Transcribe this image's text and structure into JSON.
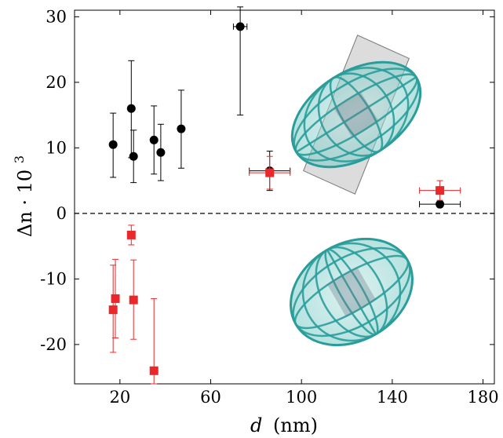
{
  "chart_data": {
    "type": "scatter",
    "xlabel_var": "d",
    "xlabel_unit": "(nm)",
    "ylabel_main": "Δn · 10",
    "ylabel_sup": "3",
    "xlim": [
      0,
      185
    ],
    "ylim": [
      -26,
      31
    ],
    "xticks": [
      20,
      60,
      100,
      140,
      180
    ],
    "yticks": [
      -20,
      -10,
      0,
      10,
      20,
      30
    ],
    "grid": false,
    "reference_line_y": 0,
    "series": [
      {
        "marker": "circle",
        "color": "#000000",
        "points": [
          {
            "x": 17,
            "y": 10.5,
            "yerr_low": 5.0,
            "yerr_high": 4.8
          },
          {
            "x": 25,
            "y": 16.0,
            "yerr_low": 7.5,
            "yerr_high": 7.3
          },
          {
            "x": 26,
            "y": 8.7,
            "yerr_low": 4.0,
            "yerr_high": 4.0
          },
          {
            "x": 35,
            "y": 11.2,
            "yerr_low": 5.2,
            "yerr_high": 5.2
          },
          {
            "x": 38,
            "y": 9.3,
            "yerr_low": 4.3,
            "yerr_high": 4.3
          },
          {
            "x": 47,
            "y": 12.9,
            "yerr_low": 6.0,
            "yerr_high": 5.9
          },
          {
            "x": 73,
            "y": 28.5,
            "yerr_low": 13.5,
            "yerr_high": 3.0,
            "xerr": 3
          },
          {
            "x": 86,
            "y": 6.5,
            "yerr_low": 3.0,
            "yerr_high": 3.0,
            "xerr": 9
          },
          {
            "x": 161,
            "y": 1.4,
            "yerr_low": 0,
            "yerr_high": 0,
            "xerr": 9
          }
        ]
      },
      {
        "marker": "square",
        "color": "#e8282a",
        "points": [
          {
            "x": 17,
            "y": -14.7,
            "yerr_low": 6.5,
            "yerr_high": 6.8
          },
          {
            "x": 18,
            "y": -13.0,
            "yerr_low": 6.0,
            "yerr_high": 6.0
          },
          {
            "x": 25,
            "y": -3.3,
            "yerr_low": 1.5,
            "yerr_high": 1.5
          },
          {
            "x": 26,
            "y": -13.2,
            "yerr_low": 6.0,
            "yerr_high": 6.1
          },
          {
            "x": 35,
            "y": -24.0,
            "yerr_low": 2.0,
            "yerr_high": 11.0
          },
          {
            "x": 86,
            "y": 6.2,
            "yerr_low": 2.5,
            "yerr_high": 2.5,
            "xerr": 9
          },
          {
            "x": 161,
            "y": 3.5,
            "yerr_low": 1.5,
            "yerr_high": 1.5,
            "xerr": 9
          }
        ]
      }
    ]
  },
  "insets": [
    {
      "depicts": "prolate-ellipsoid-with-plane-icon",
      "color": "#2a9d9a"
    },
    {
      "depicts": "oblate-ellipsoid-with-plane-icon",
      "color": "#2a9d9a"
    }
  ]
}
